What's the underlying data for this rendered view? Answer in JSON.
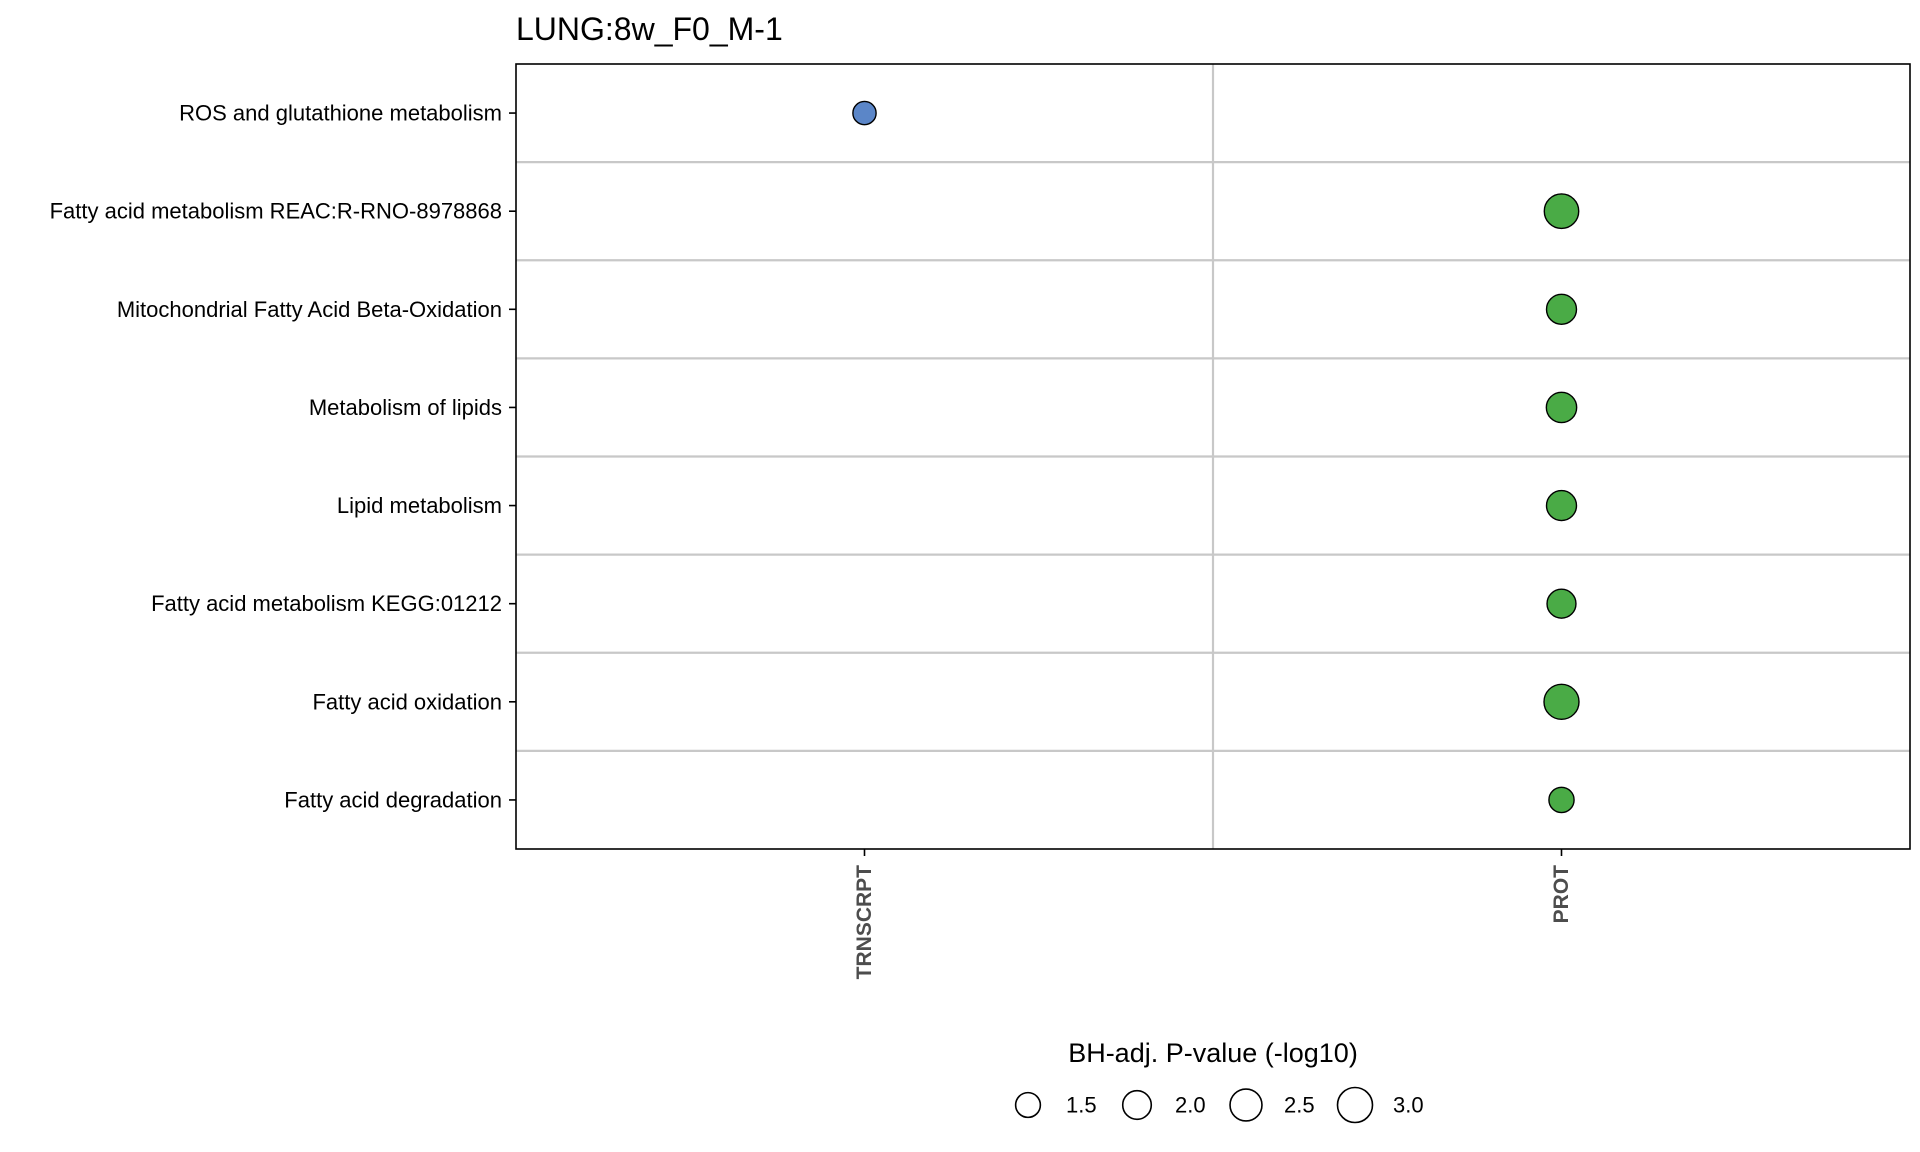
{
  "chart_data": {
    "type": "scatter",
    "title": "LUNG:8w_F0_M-1",
    "xlabel": "",
    "ylabel": "",
    "x_categories": [
      "TRNSCRPT",
      "PROT"
    ],
    "y_categories": [
      "ROS and glutathione metabolism",
      "Fatty acid metabolism REAC:R-RNO-8978868",
      "Mitochondrial Fatty Acid Beta-Oxidation",
      "Metabolism of lipids",
      "Lipid metabolism",
      "Fatty acid metabolism KEGG:01212",
      "Fatty acid oxidation",
      "Fatty acid degradation"
    ],
    "points": [
      {
        "x": "TRNSCRPT",
        "y": "ROS and glutathione metabolism",
        "size": 1.32,
        "color": "#5b86c8"
      },
      {
        "x": "PROT",
        "y": "Fatty acid metabolism REAC:R-RNO-8978868",
        "size": 2.9,
        "color": "#4aab46"
      },
      {
        "x": "PROT",
        "y": "Mitochondrial Fatty Acid Beta-Oxidation",
        "size": 2.2,
        "color": "#4aab46"
      },
      {
        "x": "PROT",
        "y": "Metabolism of lipids",
        "size": 2.25,
        "color": "#4aab46"
      },
      {
        "x": "PROT",
        "y": "Lipid metabolism",
        "size": 2.2,
        "color": "#4aab46"
      },
      {
        "x": "PROT",
        "y": "Fatty acid metabolism KEGG:01212",
        "size": 2.05,
        "color": "#4aab46"
      },
      {
        "x": "PROT",
        "y": "Fatty acid oxidation",
        "size": 3.0,
        "color": "#4aab46"
      },
      {
        "x": "PROT",
        "y": "Fatty acid degradation",
        "size": 1.55,
        "color": "#4aab46"
      }
    ],
    "legend": {
      "title": "BH-adj. P-value (-log10)",
      "position": "bottom",
      "values": [
        1.5,
        2.0,
        2.5,
        3.0
      ],
      "labels": [
        "1.5",
        "2.0",
        "2.5",
        "3.0"
      ]
    },
    "grid": true
  }
}
